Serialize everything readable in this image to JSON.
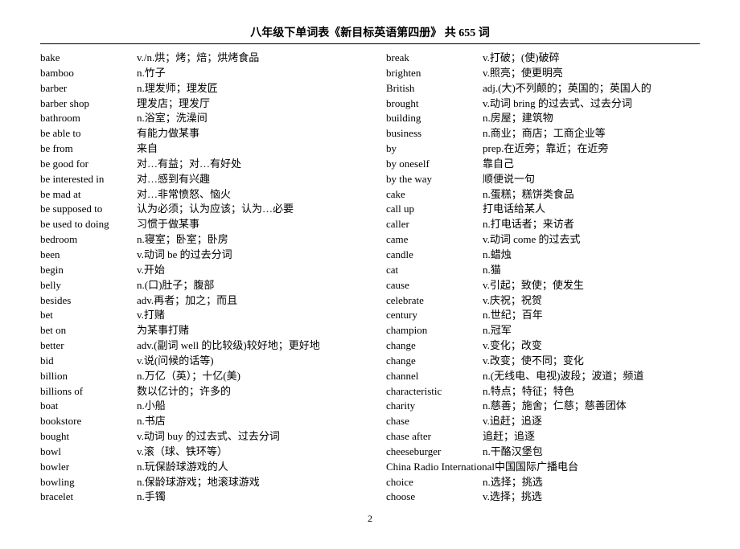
{
  "title": "八年级下单词表《新目标英语第四册》 共 655 词",
  "pagenum": "2",
  "left": [
    {
      "w": "bake",
      "d": "v./n.烘；烤；焙；烘烤食品"
    },
    {
      "w": "bamboo",
      "d": "n.竹子"
    },
    {
      "w": "barber",
      "d": "n.理发师；理发匠"
    },
    {
      "w": "barber shop",
      "d": "理发店；理发厅"
    },
    {
      "w": "bathroom",
      "d": "n.浴室；洗澡间"
    },
    {
      "w": "be able to",
      "d": "有能力做某事"
    },
    {
      "w": "be from",
      "d": "来自"
    },
    {
      "w": "be good for",
      "d": "对…有益；对…有好处"
    },
    {
      "w": "be interested in",
      "d": "对…感到有兴趣"
    },
    {
      "w": "be mad at",
      "d": "对…非常愤怒、恼火"
    },
    {
      "w": "be supposed to",
      "d": "认为必须；认为应该；认为…必要"
    },
    {
      "w": "be used to doing",
      "d": "习惯于做某事"
    },
    {
      "w": "bedroom",
      "d": "n.寝室；卧室；卧房"
    },
    {
      "w": "been",
      "d": "v.动词 be 的过去分词"
    },
    {
      "w": "begin",
      "d": "v.开始"
    },
    {
      "w": "belly",
      "d": "n.(口)肚子；腹部"
    },
    {
      "w": "besides",
      "d": "adv.再者；加之；而且"
    },
    {
      "w": "bet",
      "d": "v.打赌"
    },
    {
      "w": "bet on",
      "d": "为某事打赌"
    },
    {
      "w": "better",
      "d": "adv.(副词 well 的比较级)较好地；更好地"
    },
    {
      "w": "bid",
      "d": "v.说(问候的话等)"
    },
    {
      "w": "billion",
      "d": "n.万亿（英）；十亿(美)"
    },
    {
      "w": "billions of",
      "d": "数以亿计的；许多的"
    },
    {
      "w": "boat",
      "d": "n.小船"
    },
    {
      "w": "bookstore",
      "d": "n.书店"
    },
    {
      "w": "bought",
      "d": "v.动词 buy 的过去式、过去分词"
    },
    {
      "w": "bowl",
      "d": "v.滚（球、铁环等）"
    },
    {
      "w": "bowler",
      "d": "n.玩保龄球游戏的人"
    },
    {
      "w": "bowling",
      "d": "n.保龄球游戏；地滚球游戏"
    },
    {
      "w": "bracelet",
      "d": "n.手镯"
    }
  ],
  "right": [
    {
      "w": "break",
      "d": "v.打破；(使)破碎"
    },
    {
      "w": "brighten",
      "d": "v.照亮；使更明亮"
    },
    {
      "w": "British",
      "d": "adj.(大)不列颠的；英国的；英国人的"
    },
    {
      "w": "brought",
      "d": "v.动词 bring 的过去式、过去分词"
    },
    {
      "w": "building",
      "d": "n.房屋；建筑物"
    },
    {
      "w": "business",
      "d": "n.商业；商店；工商企业等"
    },
    {
      "w": "by",
      "d": "prep.在近旁；靠近；在近旁"
    },
    {
      "w": "by oneself",
      "d": "靠自己"
    },
    {
      "w": "by the way",
      "d": "顺便说一句"
    },
    {
      "w": "cake",
      "d": "n.蛋糕；糕饼类食品"
    },
    {
      "w": "call up",
      "d": "打电话给某人"
    },
    {
      "w": "caller",
      "d": "n.打电话者；来访者"
    },
    {
      "w": "came",
      "d": "v.动词 come 的过去式"
    },
    {
      "w": "candle",
      "d": "n.蜡烛"
    },
    {
      "w": "cat",
      "d": "n.猫"
    },
    {
      "w": "cause",
      "d": "v.引起；致使；使发生"
    },
    {
      "w": "celebrate",
      "d": "v.庆祝；祝贺"
    },
    {
      "w": "century",
      "d": "n.世纪；百年"
    },
    {
      "w": "champion",
      "d": "n.冠军"
    },
    {
      "w": "change",
      "d": "v.变化；改变"
    },
    {
      "w": "change",
      "d": "v.改变；使不同；变化"
    },
    {
      "w": "channel",
      "d": "n.(无线电、电视)波段；波道；频道"
    },
    {
      "w": "characteristic",
      "d": "n.特点；特征；特色"
    },
    {
      "w": "charity",
      "d": "n.慈善；施舍；仁慈；慈善团体"
    },
    {
      "w": "chase",
      "d": "v.追赶；追逐"
    },
    {
      "w": "chase after",
      "d": "追赶；追逐"
    },
    {
      "w": "cheeseburger",
      "d": "n.干酪汉堡包"
    },
    {
      "w": "China Radio International",
      "d": "中国国际广播电台"
    },
    {
      "w": "choice",
      "d": "n.选择；挑选"
    },
    {
      "w": "choose",
      "d": "v.选择；挑选"
    }
  ]
}
